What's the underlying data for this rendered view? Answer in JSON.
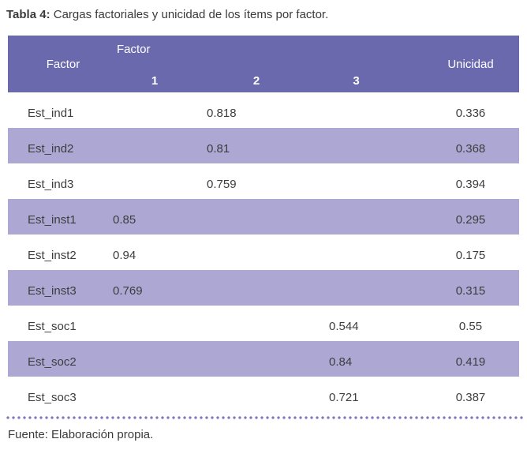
{
  "caption": {
    "label": "Tabla 4:",
    "text": "Cargas factoriales y unicidad de los ítems por factor."
  },
  "table": {
    "header": {
      "factor_col": "Factor",
      "factor_group": "Factor",
      "subcolumns": [
        "1",
        "2",
        "3"
      ],
      "unicidad_col": "Unicidad"
    },
    "rows": [
      {
        "item": "Est_ind1",
        "f1": "",
        "f2": "0.818",
        "f3": "",
        "unicidad": "0.336"
      },
      {
        "item": "Est_ind2",
        "f1": "",
        "f2": "0.81",
        "f3": "",
        "unicidad": "0.368"
      },
      {
        "item": "Est_ind3",
        "f1": "",
        "f2": "0.759",
        "f3": "",
        "unicidad": "0.394"
      },
      {
        "item": "Est_inst1",
        "f1": "0.85",
        "f2": "",
        "f3": "",
        "unicidad": "0.295"
      },
      {
        "item": "Est_inst2",
        "f1": "0.94",
        "f2": "",
        "f3": "",
        "unicidad": "0.175"
      },
      {
        "item": "Est_inst3",
        "f1": "0.769",
        "f2": "",
        "f3": "",
        "unicidad": "0.315"
      },
      {
        "item": "Est_soc1",
        "f1": "",
        "f2": "",
        "f3": "0.544",
        "unicidad": "0.55"
      },
      {
        "item": "Est_soc2",
        "f1": "",
        "f2": "",
        "f3": "0.84",
        "unicidad": "0.419"
      },
      {
        "item": "Est_soc3",
        "f1": "",
        "f2": "",
        "f3": "0.721",
        "unicidad": "0.387"
      }
    ]
  },
  "footer": {
    "source": "Fuente: Elaboración propia."
  },
  "colors": {
    "header_bg": "#6b69ae",
    "stripe_bg": "#aca7d3",
    "dots": "#7d76ba",
    "text": "#3a3a3a"
  }
}
